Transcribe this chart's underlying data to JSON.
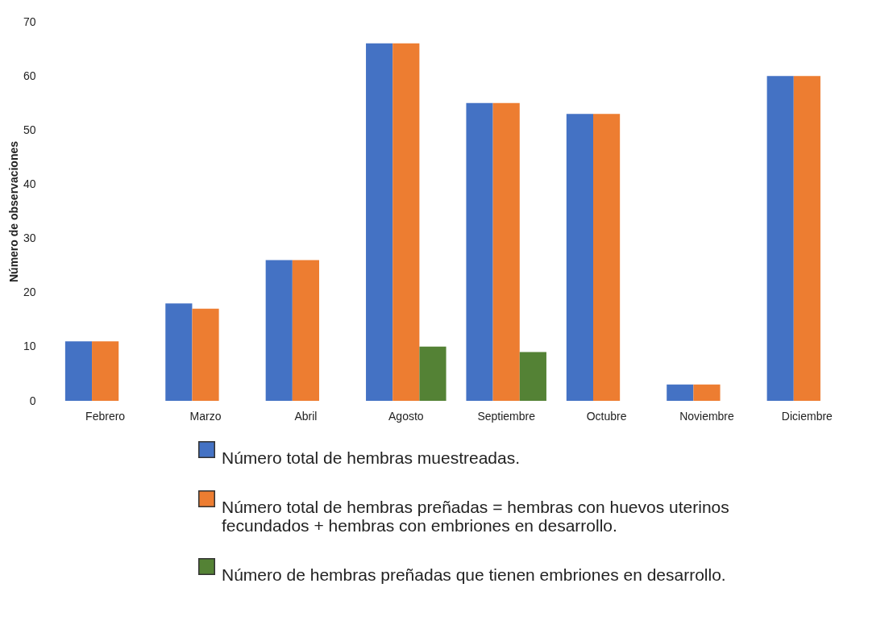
{
  "chart_data": {
    "type": "bar",
    "ylabel": "Número de observaciones",
    "categories": [
      "Febrero",
      "Marzo",
      "Abril",
      "Agosto",
      "Septiembre",
      "Octubre",
      "Noviembre",
      "Diciembre"
    ],
    "series": [
      {
        "name": "Número total de hembras muestreadas.",
        "color": "#4472c4",
        "values": [
          11,
          18,
          26,
          66,
          55,
          53,
          3,
          60
        ]
      },
      {
        "name": "Número total de hembras preñadas = hembras con huevos uterinos fecundados + hembras con embriones en desarrollo.",
        "color": "#ed7d31",
        "values": [
          11,
          17,
          26,
          66,
          55,
          53,
          3,
          60
        ]
      },
      {
        "name": "Número de hembras preñadas que tienen embriones en desarrollo.",
        "color": "#548235",
        "values": [
          null,
          null,
          null,
          10,
          9,
          null,
          null,
          null
        ]
      }
    ],
    "ylim": [
      0,
      70
    ],
    "yticks": [
      0,
      10,
      20,
      30,
      40,
      50,
      60,
      70
    ],
    "grid": false,
    "legend": "bottom"
  }
}
